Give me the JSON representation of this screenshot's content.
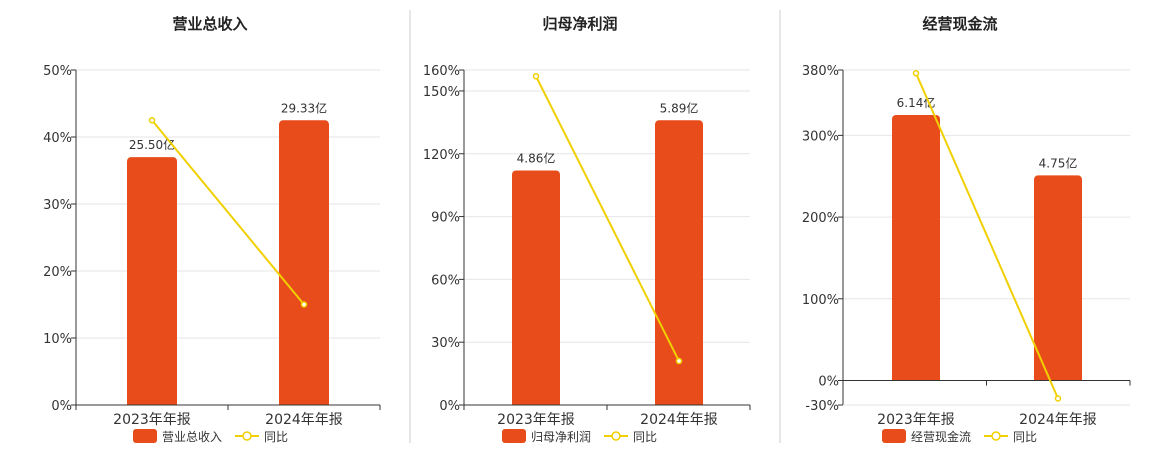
{
  "chart_data": [
    {
      "type": "bar",
      "title": "营业总收入",
      "categories": [
        "2023年年报",
        "2024年年报"
      ],
      "bar_labels": [
        "25.50亿",
        "29.33亿"
      ],
      "series": [
        {
          "name": "营业总收入",
          "type": "bar",
          "values": [
            37.0,
            42.5
          ]
        },
        {
          "name": "同比",
          "type": "line",
          "values": [
            42.5,
            15.0
          ]
        }
      ],
      "ylim": [
        0,
        50
      ],
      "yticks": [
        "0%",
        "10%",
        "20%",
        "30%",
        "40%",
        "50%"
      ],
      "ytick_values": [
        0,
        10,
        20,
        30,
        40,
        50
      ],
      "grid": true,
      "legend": "bottom"
    },
    {
      "type": "bar",
      "title": "归母净利润",
      "categories": [
        "2023年年报",
        "2024年年报"
      ],
      "bar_labels": [
        "4.86亿",
        "5.89亿"
      ],
      "series": [
        {
          "name": "归母净利润",
          "type": "bar",
          "values": [
            112,
            136
          ]
        },
        {
          "name": "同比",
          "type": "line",
          "values": [
            157,
            21
          ]
        }
      ],
      "ylim": [
        0,
        160
      ],
      "yticks": [
        "0%",
        "30%",
        "60%",
        "90%",
        "120%",
        "150%",
        "160%"
      ],
      "ytick_values": [
        0,
        30,
        60,
        90,
        120,
        150,
        160
      ],
      "grid": true,
      "legend": "bottom"
    },
    {
      "type": "bar",
      "title": "经营现金流",
      "categories": [
        "2023年年报",
        "2024年年报"
      ],
      "bar_labels": [
        "6.14亿",
        "4.75亿"
      ],
      "series": [
        {
          "name": "经营现金流",
          "type": "bar",
          "values": [
            325,
            251
          ]
        },
        {
          "name": "同比",
          "type": "line",
          "values": [
            376,
            -22
          ]
        }
      ],
      "ylim": [
        -30,
        380
      ],
      "yticks": [
        "-30%",
        "0%",
        "100%",
        "200%",
        "300%",
        "380%"
      ],
      "ytick_values": [
        -30,
        0,
        100,
        200,
        300,
        380
      ],
      "grid": true,
      "legend": "bottom"
    }
  ],
  "colors": {
    "bar": "#e84c1b",
    "line": "#f0d000",
    "axis": "#333333",
    "grid": "#e6e6e6",
    "divider": "#cccccc"
  }
}
